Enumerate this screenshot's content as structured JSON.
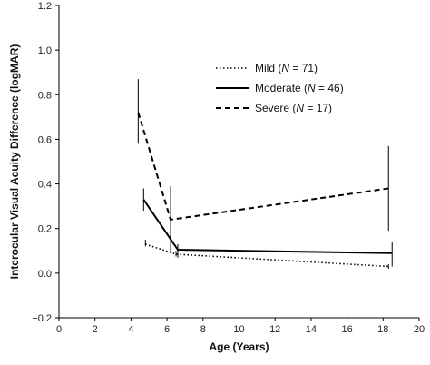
{
  "chart_data": {
    "type": "line",
    "xlabel": "Age (Years)",
    "ylabel": "Interocular Visual Acuity Difference (logMAR)",
    "xlim": [
      0,
      20
    ],
    "ylim": [
      -0.2,
      1.2
    ],
    "xticks": [
      0,
      2,
      4,
      6,
      8,
      10,
      12,
      14,
      16,
      18,
      20
    ],
    "yticks": [
      -0.2,
      0.0,
      0.2,
      0.4,
      0.6,
      0.8,
      1.0,
      1.2
    ],
    "ytick_labels": [
      "−0.2",
      "0.0",
      "0.2",
      "0.4",
      "0.6",
      "0.8",
      "1.0",
      "1.2"
    ],
    "grid": false,
    "legend_position": "top-center",
    "series": [
      {
        "name": "Mild (N = 71)",
        "label_prefix": "Mild (",
        "label_n": "N",
        "label_suffix": " = 71)",
        "style": "dotted",
        "points": [
          {
            "x": 4.8,
            "y": 0.13,
            "low": 0.12,
            "high": 0.15
          },
          {
            "x": 6.5,
            "y": 0.085,
            "low": 0.075,
            "high": 0.1
          },
          {
            "x": 18.3,
            "y": 0.03,
            "low": 0.02,
            "high": 0.04
          }
        ]
      },
      {
        "name": "Moderate (N = 46)",
        "label_prefix": "Moderate (",
        "label_n": "N",
        "label_suffix": " = 46)",
        "style": "solid",
        "points": [
          {
            "x": 4.7,
            "y": 0.33,
            "low": 0.28,
            "high": 0.38
          },
          {
            "x": 6.6,
            "y": 0.105,
            "low": 0.07,
            "high": 0.13
          },
          {
            "x": 18.5,
            "y": 0.09,
            "low": 0.03,
            "high": 0.14
          }
        ]
      },
      {
        "name": "Severe (N = 17)",
        "label_prefix": "Severe (",
        "label_n": "N",
        "label_suffix": " = 17)",
        "style": "dashed",
        "points": [
          {
            "x": 4.4,
            "y": 0.72,
            "low": 0.58,
            "high": 0.87
          },
          {
            "x": 6.2,
            "y": 0.24,
            "low": 0.09,
            "high": 0.39
          },
          {
            "x": 18.3,
            "y": 0.38,
            "low": 0.19,
            "high": 0.57
          }
        ]
      }
    ]
  }
}
